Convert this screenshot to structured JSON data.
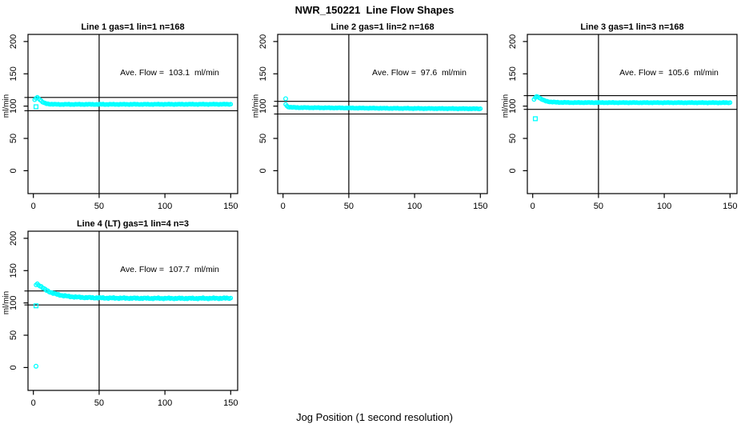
{
  "figure": {
    "title": "NWR_150221  Line Flow Shapes",
    "xlabel": "Jog Position (1 second resolution)",
    "background_color": "#FFFFFF",
    "point_color": "#00FFFF",
    "line_color": "#000000"
  },
  "chart_data": [
    {
      "type": "scatter",
      "title": "Line 1 gas=1 lin=1 n=168",
      "annotation": "Ave. Flow =  103.1  ml/min",
      "ave_flow_ml_min": 103.1,
      "ylabel": "ml/min",
      "xticks": [
        0,
        50,
        100,
        150
      ],
      "yticks": [
        0,
        50,
        100,
        150,
        200
      ],
      "xlim": [
        0,
        155
      ],
      "ylim": [
        -35,
        212
      ],
      "grid": false,
      "vline_x": 50,
      "ref_lines_y": [
        113.4,
        92.8
      ],
      "marker": "open-circle",
      "marker_color": "#00FFFF",
      "series_model": {
        "x_start": 1,
        "x_end": 150,
        "x_step": 1,
        "wobble": 0.5,
        "keypoints": [
          [
            1,
            109.5
          ],
          [
            2,
            112.5
          ],
          [
            3,
            113.5
          ],
          [
            4,
            112
          ],
          [
            5,
            110
          ],
          [
            6,
            108
          ],
          [
            7,
            106.3
          ],
          [
            8,
            105
          ],
          [
            10,
            103.8
          ],
          [
            13,
            103
          ],
          [
            18,
            102.7
          ],
          [
            40,
            102.7
          ],
          [
            150,
            102.9
          ]
        ]
      },
      "outliers": [
        {
          "x": 2,
          "y": 99,
          "marker": "square"
        }
      ]
    },
    {
      "type": "scatter",
      "title": "Line 2 gas=1 lin=2 n=168",
      "annotation": "Ave. Flow =  97.6  ml/min",
      "ave_flow_ml_min": 97.6,
      "ylabel": "ml/min",
      "xticks": [
        0,
        50,
        100,
        150
      ],
      "yticks": [
        0,
        50,
        100,
        150,
        200
      ],
      "xlim": [
        0,
        155
      ],
      "ylim": [
        -35,
        212
      ],
      "grid": false,
      "vline_x": 50,
      "ref_lines_y": [
        107.4,
        87.8
      ],
      "marker": "open-circle",
      "marker_color": "#00FFFF",
      "series_model": {
        "x_start": 2,
        "x_end": 150,
        "x_step": 1,
        "wobble": 0.5,
        "keypoints": [
          [
            2,
            103
          ],
          [
            3,
            100
          ],
          [
            4,
            98.8
          ],
          [
            6,
            98.2
          ],
          [
            10,
            97.8
          ],
          [
            30,
            97.4
          ],
          [
            80,
            96.6
          ],
          [
            150,
            95.9
          ]
        ]
      },
      "outliers": [
        {
          "x": 2,
          "y": 111.5,
          "marker": "circle"
        }
      ]
    },
    {
      "type": "scatter",
      "title": "Line 3 gas=1 lin=3 n=168",
      "annotation": "Ave. Flow =  105.6  ml/min",
      "ave_flow_ml_min": 105.6,
      "ylabel": "ml/min",
      "xticks": [
        0,
        50,
        100,
        150
      ],
      "yticks": [
        0,
        50,
        100,
        150,
        200
      ],
      "xlim": [
        0,
        155
      ],
      "ylim": [
        -35,
        212
      ],
      "grid": false,
      "vline_x": 50,
      "ref_lines_y": [
        116.2,
        95.0
      ],
      "marker": "open-circle",
      "marker_color": "#00FFFF",
      "series_model": {
        "x_start": 1,
        "x_end": 150,
        "x_step": 1,
        "wobble": 0.5,
        "keypoints": [
          [
            1,
            110
          ],
          [
            2,
            113.5
          ],
          [
            3,
            115
          ],
          [
            4,
            114.5
          ],
          [
            5,
            113
          ],
          [
            6,
            111.5
          ],
          [
            8,
            109.3
          ],
          [
            10,
            107.8
          ],
          [
            13,
            106.6
          ],
          [
            18,
            105.9
          ],
          [
            30,
            105.5
          ],
          [
            150,
            105.3
          ]
        ]
      },
      "outliers": [
        {
          "x": 2,
          "y": 80.5,
          "marker": "square"
        }
      ]
    },
    {
      "type": "scatter",
      "title": "Line 4 (LT) gas=1 lin=4 n=3",
      "annotation": "Ave. Flow =  107.7  ml/min",
      "ave_flow_ml_min": 107.7,
      "ylabel": "ml/min",
      "xticks": [
        0,
        50,
        100,
        150
      ],
      "yticks": [
        0,
        50,
        100,
        150,
        200
      ],
      "xlim": [
        0,
        155
      ],
      "ylim": [
        -35,
        212
      ],
      "grid": false,
      "vline_x": 50,
      "ref_lines_y": [
        118.5,
        96.9
      ],
      "marker": "open-circle",
      "marker_color": "#00FFFF",
      "series_model": {
        "x_start": 2,
        "x_end": 150,
        "x_step": 1,
        "wobble": 1.0,
        "keypoints": [
          [
            2,
            128.5
          ],
          [
            3,
            129.5
          ],
          [
            4,
            128
          ],
          [
            5,
            126.5
          ],
          [
            6,
            125
          ],
          [
            8,
            122
          ],
          [
            10,
            119.5
          ],
          [
            12,
            117.5
          ],
          [
            15,
            115
          ],
          [
            18,
            113.2
          ],
          [
            22,
            111.5
          ],
          [
            27,
            110
          ],
          [
            33,
            109
          ],
          [
            40,
            108.3
          ],
          [
            55,
            107.6
          ],
          [
            80,
            107.2
          ],
          [
            120,
            107
          ],
          [
            150,
            107.3
          ]
        ]
      },
      "outliers": [
        {
          "x": 2,
          "y": 95.5,
          "marker": "square"
        },
        {
          "x": 2,
          "y": 2,
          "marker": "circle"
        }
      ]
    }
  ]
}
